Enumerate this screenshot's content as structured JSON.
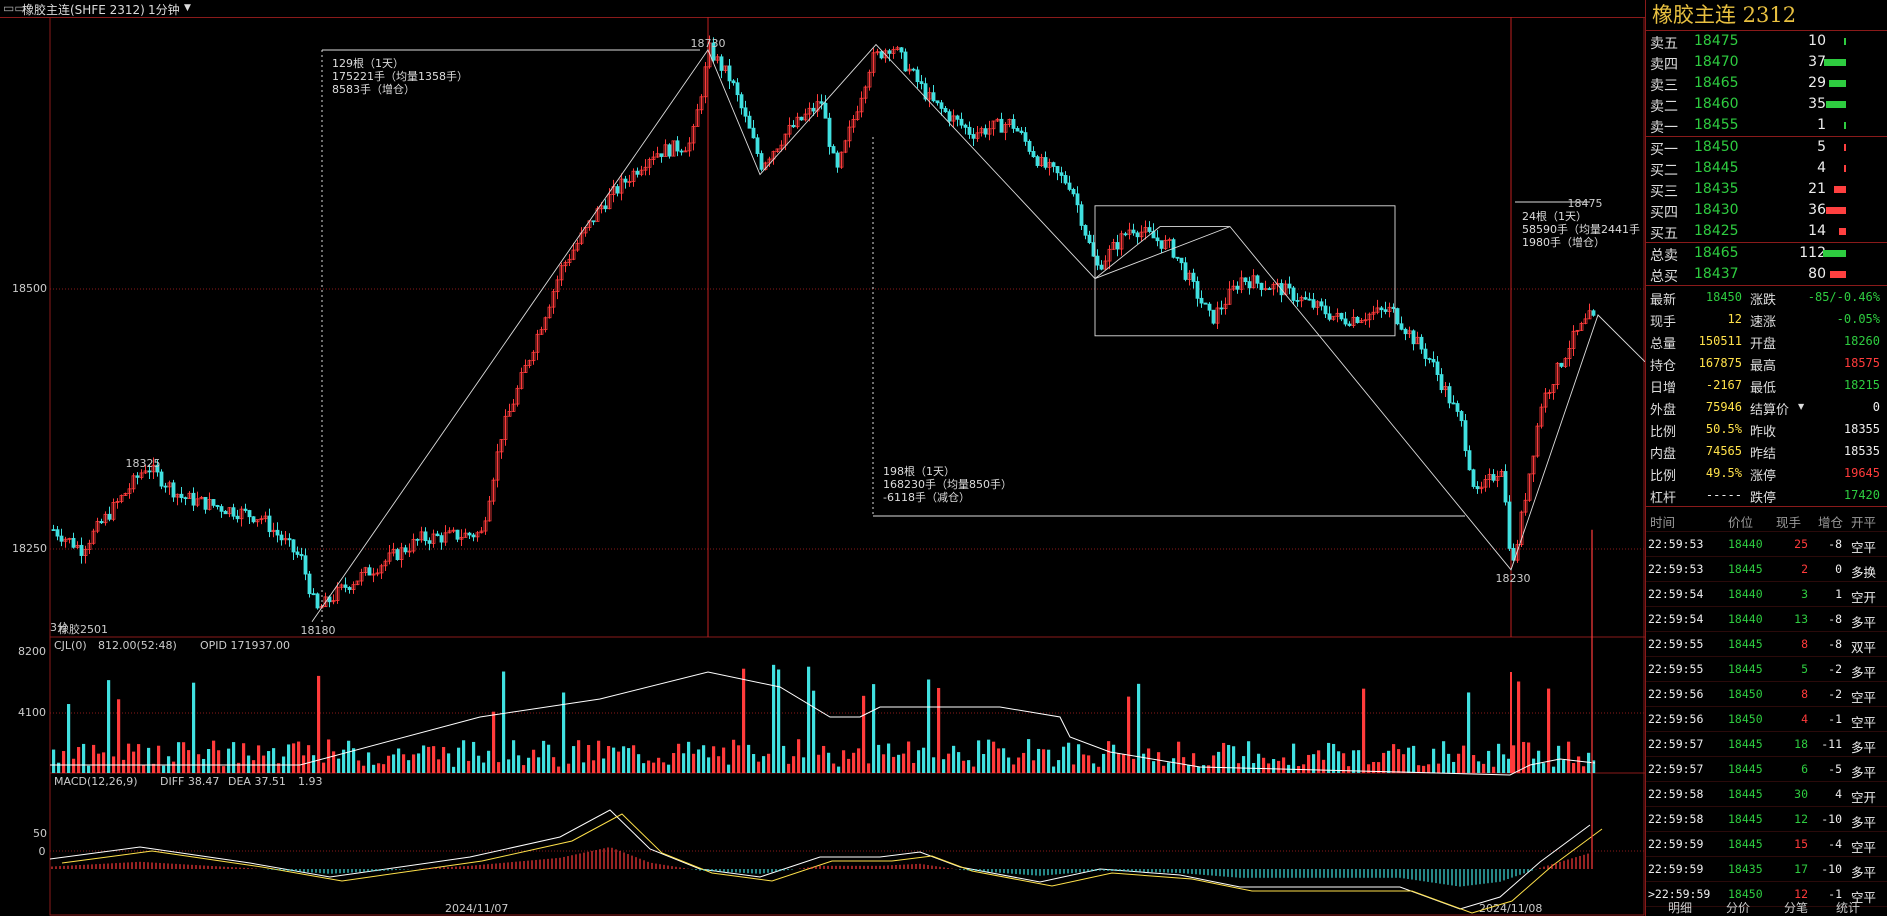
{
  "titlebar": {
    "instrument": "橡胶主连(SHFE 2312)",
    "period": "1分钟",
    "icon": "window-icon",
    "dropdown_icon": "chevron-down-icon"
  },
  "colors": {
    "up": "#ff3b3b",
    "down": "#40e0e0",
    "grid": "#8a1a1a",
    "line": "#ffffff",
    "dif": "#ffffff",
    "dea": "#ffe14a"
  },
  "price_chart": {
    "y_ticks": [
      "18500",
      "18250"
    ],
    "x_labels": [
      "2024/11/07",
      "2024/11/08"
    ],
    "markers": [
      {
        "text": "18325",
        "color": "red"
      },
      {
        "text": "18180",
        "color": "cyan"
      },
      {
        "text": "18730",
        "color": "red"
      },
      {
        "text": "18475",
        "color": "red"
      },
      {
        "text": "18230",
        "color": "cyan"
      }
    ],
    "annotations": [
      {
        "lines": [
          "129根（1天）",
          "175221手（均量1358手）",
          "8583手（增仓）"
        ]
      },
      {
        "lines": [
          "198根（1天）",
          "168230手（均量850手）",
          "-6118手（减仓）"
        ]
      },
      {
        "lines": [
          "24根（1天）",
          "58590手（均量2441手",
          "1980手（增仓）"
        ]
      }
    ],
    "overlay_tag": "3分",
    "contract_tag": "橡胶2501"
  },
  "volume_panel": {
    "legend": "CJL(0)",
    "value": "812.00(52:48)",
    "opid": "OPID 171937.00",
    "y_ticks": [
      "8200",
      "4100"
    ]
  },
  "macd_panel": {
    "legend": "MACD(12,26,9)",
    "diff": "DIFF 38.47",
    "dea": "DEA 37.51",
    "macd": "1.93",
    "y_ticks": [
      "50",
      "0"
    ]
  },
  "panel": {
    "title": "橡胶主连  2312",
    "asks": [
      {
        "label": "卖五",
        "price": "18475",
        "qty": "10",
        "bar": 0.1
      },
      {
        "label": "卖四",
        "price": "18470",
        "qty": "37",
        "bar": 0.9
      },
      {
        "label": "卖三",
        "price": "18465",
        "qty": "29",
        "bar": 0.7
      },
      {
        "label": "卖二",
        "price": "18460",
        "qty": "35",
        "bar": 0.85
      },
      {
        "label": "卖一",
        "price": "18455",
        "qty": "1",
        "bar": 0.0
      }
    ],
    "bids": [
      {
        "label": "买一",
        "price": "18450",
        "qty": "5",
        "bar": 0.05
      },
      {
        "label": "买二",
        "price": "18445",
        "qty": "4",
        "bar": 0.04
      },
      {
        "label": "买三",
        "price": "18435",
        "qty": "21",
        "bar": 0.5
      },
      {
        "label": "买四",
        "price": "18430",
        "qty": "36",
        "bar": 0.85
      },
      {
        "label": "买五",
        "price": "18425",
        "qty": "14",
        "bar": 0.3
      }
    ],
    "totals": [
      {
        "label": "总卖",
        "price": "18465",
        "qty": "112",
        "bar": 0.95,
        "color": "green"
      },
      {
        "label": "总买",
        "price": "18437",
        "qty": "80",
        "bar": 0.65,
        "color": "red"
      }
    ],
    "stats": [
      {
        "l1": "最新",
        "v1": "18450",
        "c1": "green",
        "l2": "涨跌",
        "v2": "-85/-0.46%",
        "c2": "green"
      },
      {
        "l1": "现手",
        "v1": "12",
        "c1": "yellow",
        "l2": "速涨",
        "v2": "-0.05%",
        "c2": "green"
      },
      {
        "l1": "总量",
        "v1": "150511",
        "c1": "yellow",
        "l2": "开盘",
        "v2": "18260",
        "c2": "green"
      },
      {
        "l1": "持仓",
        "v1": "167875",
        "c1": "yellow",
        "l2": "最高",
        "v2": "18575",
        "c2": "red"
      },
      {
        "l1": "日增",
        "v1": "-2167",
        "c1": "yellow",
        "l2": "最低",
        "v2": "18215",
        "c2": "green"
      },
      {
        "l1": "外盘",
        "v1": "75946",
        "c1": "yellow",
        "l2": "结算价",
        "v2": "0",
        "c2": "white"
      },
      {
        "l1": "比例",
        "v1": "50.5%",
        "c1": "yellow",
        "l2": "昨收",
        "v2": "18355",
        "c2": "white"
      },
      {
        "l1": "内盘",
        "v1": "74565",
        "c1": "yellow",
        "l2": "昨结",
        "v2": "18535",
        "c2": "white"
      },
      {
        "l1": "比例",
        "v1": "49.5%",
        "c1": "yellow",
        "l2": "涨停",
        "v2": "19645",
        "c2": "red"
      },
      {
        "l1": "杠杆",
        "v1": "-----",
        "c1": "white",
        "l2": "跌停",
        "v2": "17420",
        "c2": "green"
      }
    ],
    "ticks_header": [
      "时间",
      "价位",
      "现手",
      "增仓",
      "开平"
    ],
    "ticks": [
      {
        "time": "22:59:53",
        "price": "18440",
        "vol": "25",
        "vc": "red",
        "oi": "-8",
        "type": "空平"
      },
      {
        "time": "22:59:53",
        "price": "18445",
        "vol": "2",
        "vc": "red",
        "oi": "0",
        "type": "多换"
      },
      {
        "time": "22:59:54",
        "price": "18440",
        "vol": "3",
        "vc": "green",
        "oi": "1",
        "type": "空开"
      },
      {
        "time": "22:59:54",
        "price": "18440",
        "vol": "13",
        "vc": "green",
        "oi": "-8",
        "type": "多平"
      },
      {
        "time": "22:59:55",
        "price": "18445",
        "vol": "8",
        "vc": "red",
        "oi": "-8",
        "type": "双平"
      },
      {
        "time": "22:59:55",
        "price": "18445",
        "vol": "5",
        "vc": "green",
        "oi": "-2",
        "type": "多平"
      },
      {
        "time": "22:59:56",
        "price": "18450",
        "vol": "8",
        "vc": "red",
        "oi": "-2",
        "type": "空平"
      },
      {
        "time": "22:59:56",
        "price": "18450",
        "vol": "4",
        "vc": "red",
        "oi": "-1",
        "type": "空平"
      },
      {
        "time": "22:59:57",
        "price": "18445",
        "vol": "18",
        "vc": "green",
        "oi": "-11",
        "type": "多平"
      },
      {
        "time": "22:59:57",
        "price": "18445",
        "vol": "6",
        "vc": "green",
        "oi": "-5",
        "type": "多平"
      },
      {
        "time": "22:59:58",
        "price": "18445",
        "vol": "30",
        "vc": "green",
        "oi": "4",
        "type": "空开"
      },
      {
        "time": "22:59:58",
        "price": "18445",
        "vol": "12",
        "vc": "green",
        "oi": "-10",
        "type": "多平"
      },
      {
        "time": "22:59:59",
        "price": "18445",
        "vol": "15",
        "vc": "red",
        "oi": "-4",
        "type": "空平"
      },
      {
        "time": "22:59:59",
        "price": "18435",
        "vol": "17",
        "vc": "green",
        "oi": "-10",
        "type": "多平"
      },
      {
        "time": ">22:59:59",
        "price": "18450",
        "vol": "12",
        "vc": "red",
        "oi": "-1",
        "type": "空平"
      }
    ],
    "tabs": [
      "明细",
      "分价",
      "分笔",
      "统计"
    ]
  }
}
